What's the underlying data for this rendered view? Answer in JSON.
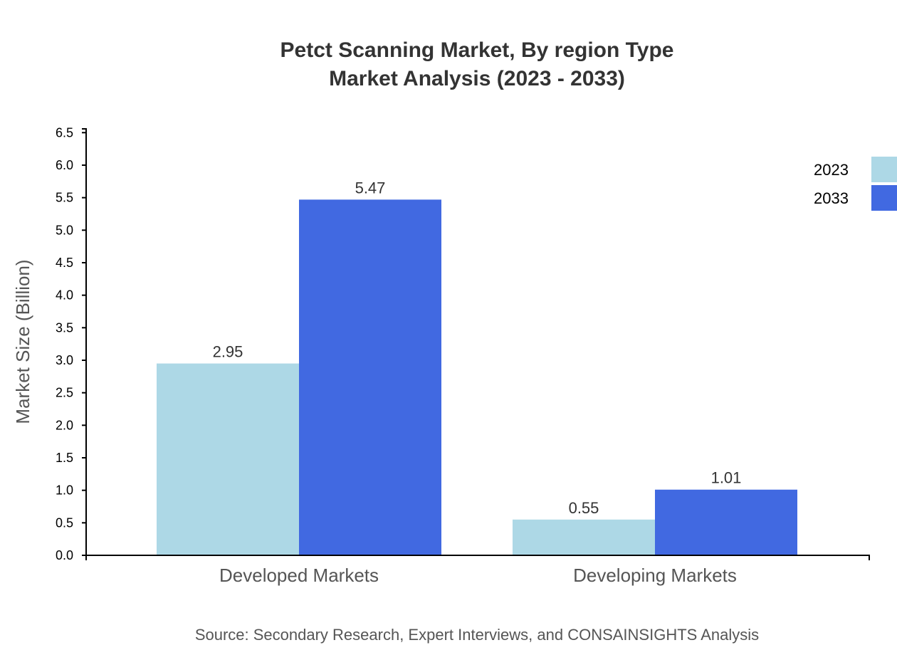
{
  "chart_data": {
    "type": "bar",
    "title": [
      "Petct Scanning Market, By region Type",
      "Market Analysis (2023 - 2033)"
    ],
    "xlabel": "",
    "ylabel": "Market Size (Billion)",
    "ylim": [
      0,
      6.5
    ],
    "yticks": [
      "0.0",
      "0.5",
      "1.0",
      "1.5",
      "2.0",
      "2.5",
      "3.0",
      "3.5",
      "4.0",
      "4.5",
      "5.0",
      "5.5",
      "6.0",
      "6.5"
    ],
    "categories": [
      "Developed Markets",
      "Developing Markets"
    ],
    "series": [
      {
        "name": "2023",
        "values": [
          2.95,
          0.55
        ],
        "labels": [
          "2.95",
          "0.55"
        ],
        "color": "#add8e6"
      },
      {
        "name": "2033",
        "values": [
          5.47,
          1.01
        ],
        "labels": [
          "5.47",
          "1.01"
        ],
        "color": "#4169e1"
      }
    ],
    "legend_position": "top-right",
    "grid": false,
    "source": "Source: Secondary Research, Expert Interviews, and CONSAINSIGHTS Analysis"
  }
}
